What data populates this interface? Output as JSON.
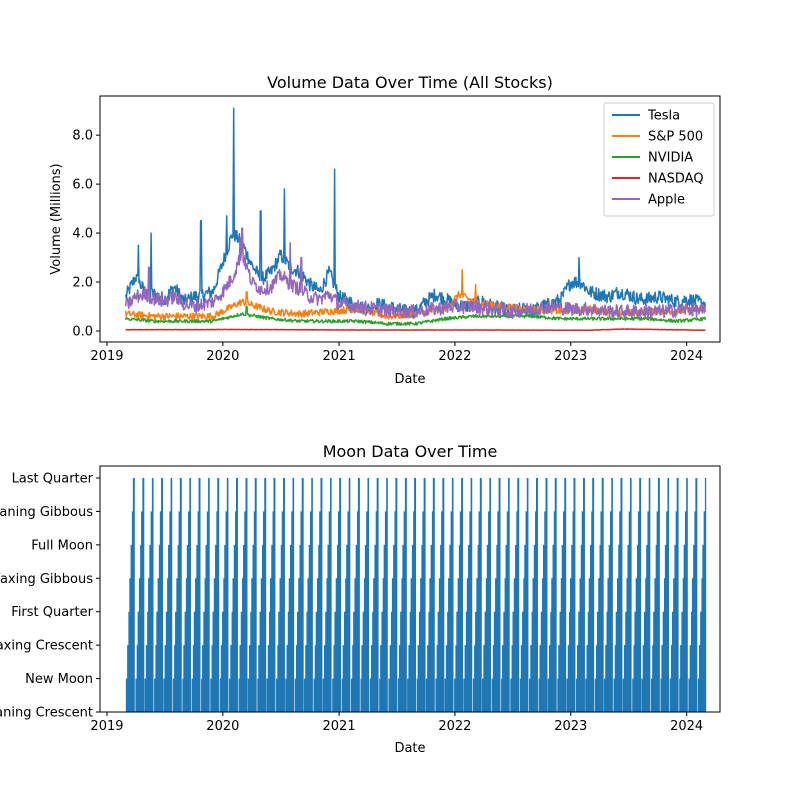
{
  "chart_data": [
    {
      "type": "line",
      "title": "Volume Data Over Time (All Stocks)",
      "xlabel": "Date",
      "ylabel": "Volume (Millions)",
      "xlim": [
        "2018-12-10",
        "2024-04-15"
      ],
      "ylim": [
        -0.45,
        9.6
      ],
      "xticks": [
        "2019",
        "2020",
        "2021",
        "2022",
        "2023",
        "2024"
      ],
      "yticks": [
        "0.0",
        "2.0",
        "4.0",
        "6.0",
        "8.0"
      ],
      "legend": "top-right",
      "grid": false,
      "series": [
        {
          "name": "Tesla",
          "color": "#1f77b4",
          "x": [
            "2019-03-01",
            "2019-04-01",
            "2019-05-01",
            "2019-06-01",
            "2019-07-01",
            "2019-08-01",
            "2019-09-01",
            "2019-10-01",
            "2019-11-01",
            "2019-12-01",
            "2020-01-01",
            "2020-02-01",
            "2020-03-01",
            "2020-04-01",
            "2020-05-01",
            "2020-06-01",
            "2020-07-01",
            "2020-08-01",
            "2020-09-01",
            "2020-10-01",
            "2020-11-01",
            "2020-12-01",
            "2021-01-01",
            "2021-02-01",
            "2021-03-01",
            "2021-04-01",
            "2021-05-01",
            "2021-06-01",
            "2021-07-01",
            "2021-08-01",
            "2021-09-01",
            "2021-10-01",
            "2021-11-01",
            "2021-12-01",
            "2022-01-01",
            "2022-02-01",
            "2022-03-01",
            "2022-04-01",
            "2022-05-01",
            "2022-06-01",
            "2022-07-01",
            "2022-08-01",
            "2022-09-01",
            "2022-10-01",
            "2022-11-01",
            "2022-12-01",
            "2023-01-01",
            "2023-02-01",
            "2023-03-01",
            "2023-04-01",
            "2023-05-01",
            "2023-06-01",
            "2023-07-01",
            "2023-08-01",
            "2023-09-01",
            "2023-10-01",
            "2023-11-01",
            "2023-12-01",
            "2024-01-01",
            "2024-02-01",
            "2024-03-01"
          ],
          "y": [
            1.4,
            2.2,
            1.6,
            1.5,
            1.3,
            1.8,
            1.2,
            1.4,
            1.5,
            1.6,
            2.8,
            4.0,
            3.6,
            2.7,
            2.1,
            2.4,
            3.1,
            2.6,
            2.4,
            1.9,
            1.6,
            2.4,
            1.4,
            1.2,
            1.0,
            0.9,
            1.1,
            1.0,
            0.9,
            0.8,
            0.8,
            1.2,
            1.5,
            1.3,
            1.1,
            1.0,
            1.1,
            1.2,
            1.0,
            0.9,
            0.8,
            0.9,
            0.8,
            1.0,
            1.1,
            1.3,
            2.0,
            2.0,
            1.6,
            1.5,
            1.4,
            1.6,
            1.5,
            1.3,
            1.3,
            1.4,
            1.3,
            1.2,
            1.3,
            1.2,
            1.1
          ]
        },
        {
          "name": "S&P 500",
          "color": "#ff7f0e",
          "x": [
            "2019-03-01",
            "2019-06-01",
            "2019-09-01",
            "2019-12-01",
            "2020-03-01",
            "2020-06-01",
            "2020-09-01",
            "2020-12-01",
            "2021-03-01",
            "2021-06-01",
            "2021-09-01",
            "2021-12-01",
            "2022-01-15",
            "2022-03-01",
            "2022-06-01",
            "2022-09-01",
            "2022-12-01",
            "2023-03-01",
            "2023-06-01",
            "2023-09-01",
            "2023-12-01",
            "2024-03-01"
          ],
          "y": [
            0.7,
            0.6,
            0.6,
            0.6,
            1.2,
            0.8,
            0.7,
            0.8,
            0.9,
            0.6,
            0.7,
            0.9,
            1.5,
            1.2,
            1.0,
            0.9,
            0.8,
            0.9,
            0.7,
            0.8,
            0.8,
            0.9
          ]
        },
        {
          "name": "NVIDIA",
          "color": "#2ca02c",
          "x": [
            "2019-03-01",
            "2019-06-01",
            "2019-09-01",
            "2019-12-01",
            "2020-03-01",
            "2020-06-01",
            "2020-09-01",
            "2020-12-01",
            "2021-03-01",
            "2021-06-01",
            "2021-09-01",
            "2021-12-01",
            "2022-03-01",
            "2022-06-01",
            "2022-09-01",
            "2022-12-01",
            "2023-03-01",
            "2023-06-01",
            "2023-09-01",
            "2023-12-01",
            "2024-03-01"
          ],
          "y": [
            0.5,
            0.4,
            0.4,
            0.4,
            0.7,
            0.5,
            0.4,
            0.4,
            0.4,
            0.3,
            0.3,
            0.5,
            0.6,
            0.6,
            0.6,
            0.5,
            0.5,
            0.5,
            0.5,
            0.4,
            0.5
          ]
        },
        {
          "name": "NASDAQ",
          "color": "#d62728",
          "x": [
            "2019-03-01",
            "2020-03-01",
            "2021-03-01",
            "2022-03-01",
            "2023-03-01",
            "2023-06-15",
            "2024-03-01"
          ],
          "y": [
            0.05,
            0.06,
            0.04,
            0.04,
            0.03,
            0.08,
            0.03
          ]
        },
        {
          "name": "Apple",
          "color": "#9467bd",
          "x": [
            "2019-03-01",
            "2019-04-01",
            "2019-05-01",
            "2019-06-01",
            "2019-07-01",
            "2019-08-01",
            "2019-09-01",
            "2019-10-01",
            "2019-11-01",
            "2019-12-01",
            "2020-01-01",
            "2020-02-01",
            "2020-03-01",
            "2020-04-01",
            "2020-05-01",
            "2020-06-01",
            "2020-07-01",
            "2020-08-01",
            "2020-09-01",
            "2020-10-01",
            "2020-11-01",
            "2020-12-01",
            "2021-01-01",
            "2021-03-01",
            "2021-05-01",
            "2021-07-01",
            "2021-09-01",
            "2021-11-01",
            "2022-01-01",
            "2022-03-01",
            "2022-05-01",
            "2022-07-01",
            "2022-09-01",
            "2022-11-01",
            "2023-01-01",
            "2023-03-01",
            "2023-05-01",
            "2023-07-01",
            "2023-09-01",
            "2023-11-01",
            "2024-01-01",
            "2024-03-01"
          ],
          "y": [
            1.0,
            1.4,
            1.5,
            1.3,
            1.2,
            1.4,
            1.1,
            1.0,
            1.1,
            1.2,
            1.6,
            2.2,
            3.2,
            2.0,
            1.7,
            1.8,
            2.3,
            1.9,
            1.7,
            1.4,
            1.3,
            1.5,
            1.1,
            1.0,
            0.9,
            0.8,
            0.8,
            0.9,
            1.0,
            1.0,
            0.9,
            0.8,
            0.9,
            1.0,
            0.9,
            0.9,
            0.8,
            0.8,
            0.8,
            0.8,
            0.9,
            0.8
          ]
        }
      ]
    },
    {
      "type": "bar",
      "title": "Moon Data Over Time",
      "xlabel": "Date",
      "ylabel": "",
      "xlim": [
        "2018-12-10",
        "2024-04-15"
      ],
      "xticks": [
        "2019",
        "2020",
        "2021",
        "2022",
        "2023",
        "2024"
      ],
      "categories": [
        "Waning Crescent",
        "New Moon",
        "Waxing Crescent",
        "First Quarter",
        "Waxing Gibbous",
        "Full Moon",
        "Waning Gibbous",
        "Last Quarter"
      ],
      "start_date": "2019-03-01",
      "end_date": "2024-03-01",
      "color": "#1f77b4",
      "note": "daily moon phase index bars (0-7 scale)"
    }
  ]
}
